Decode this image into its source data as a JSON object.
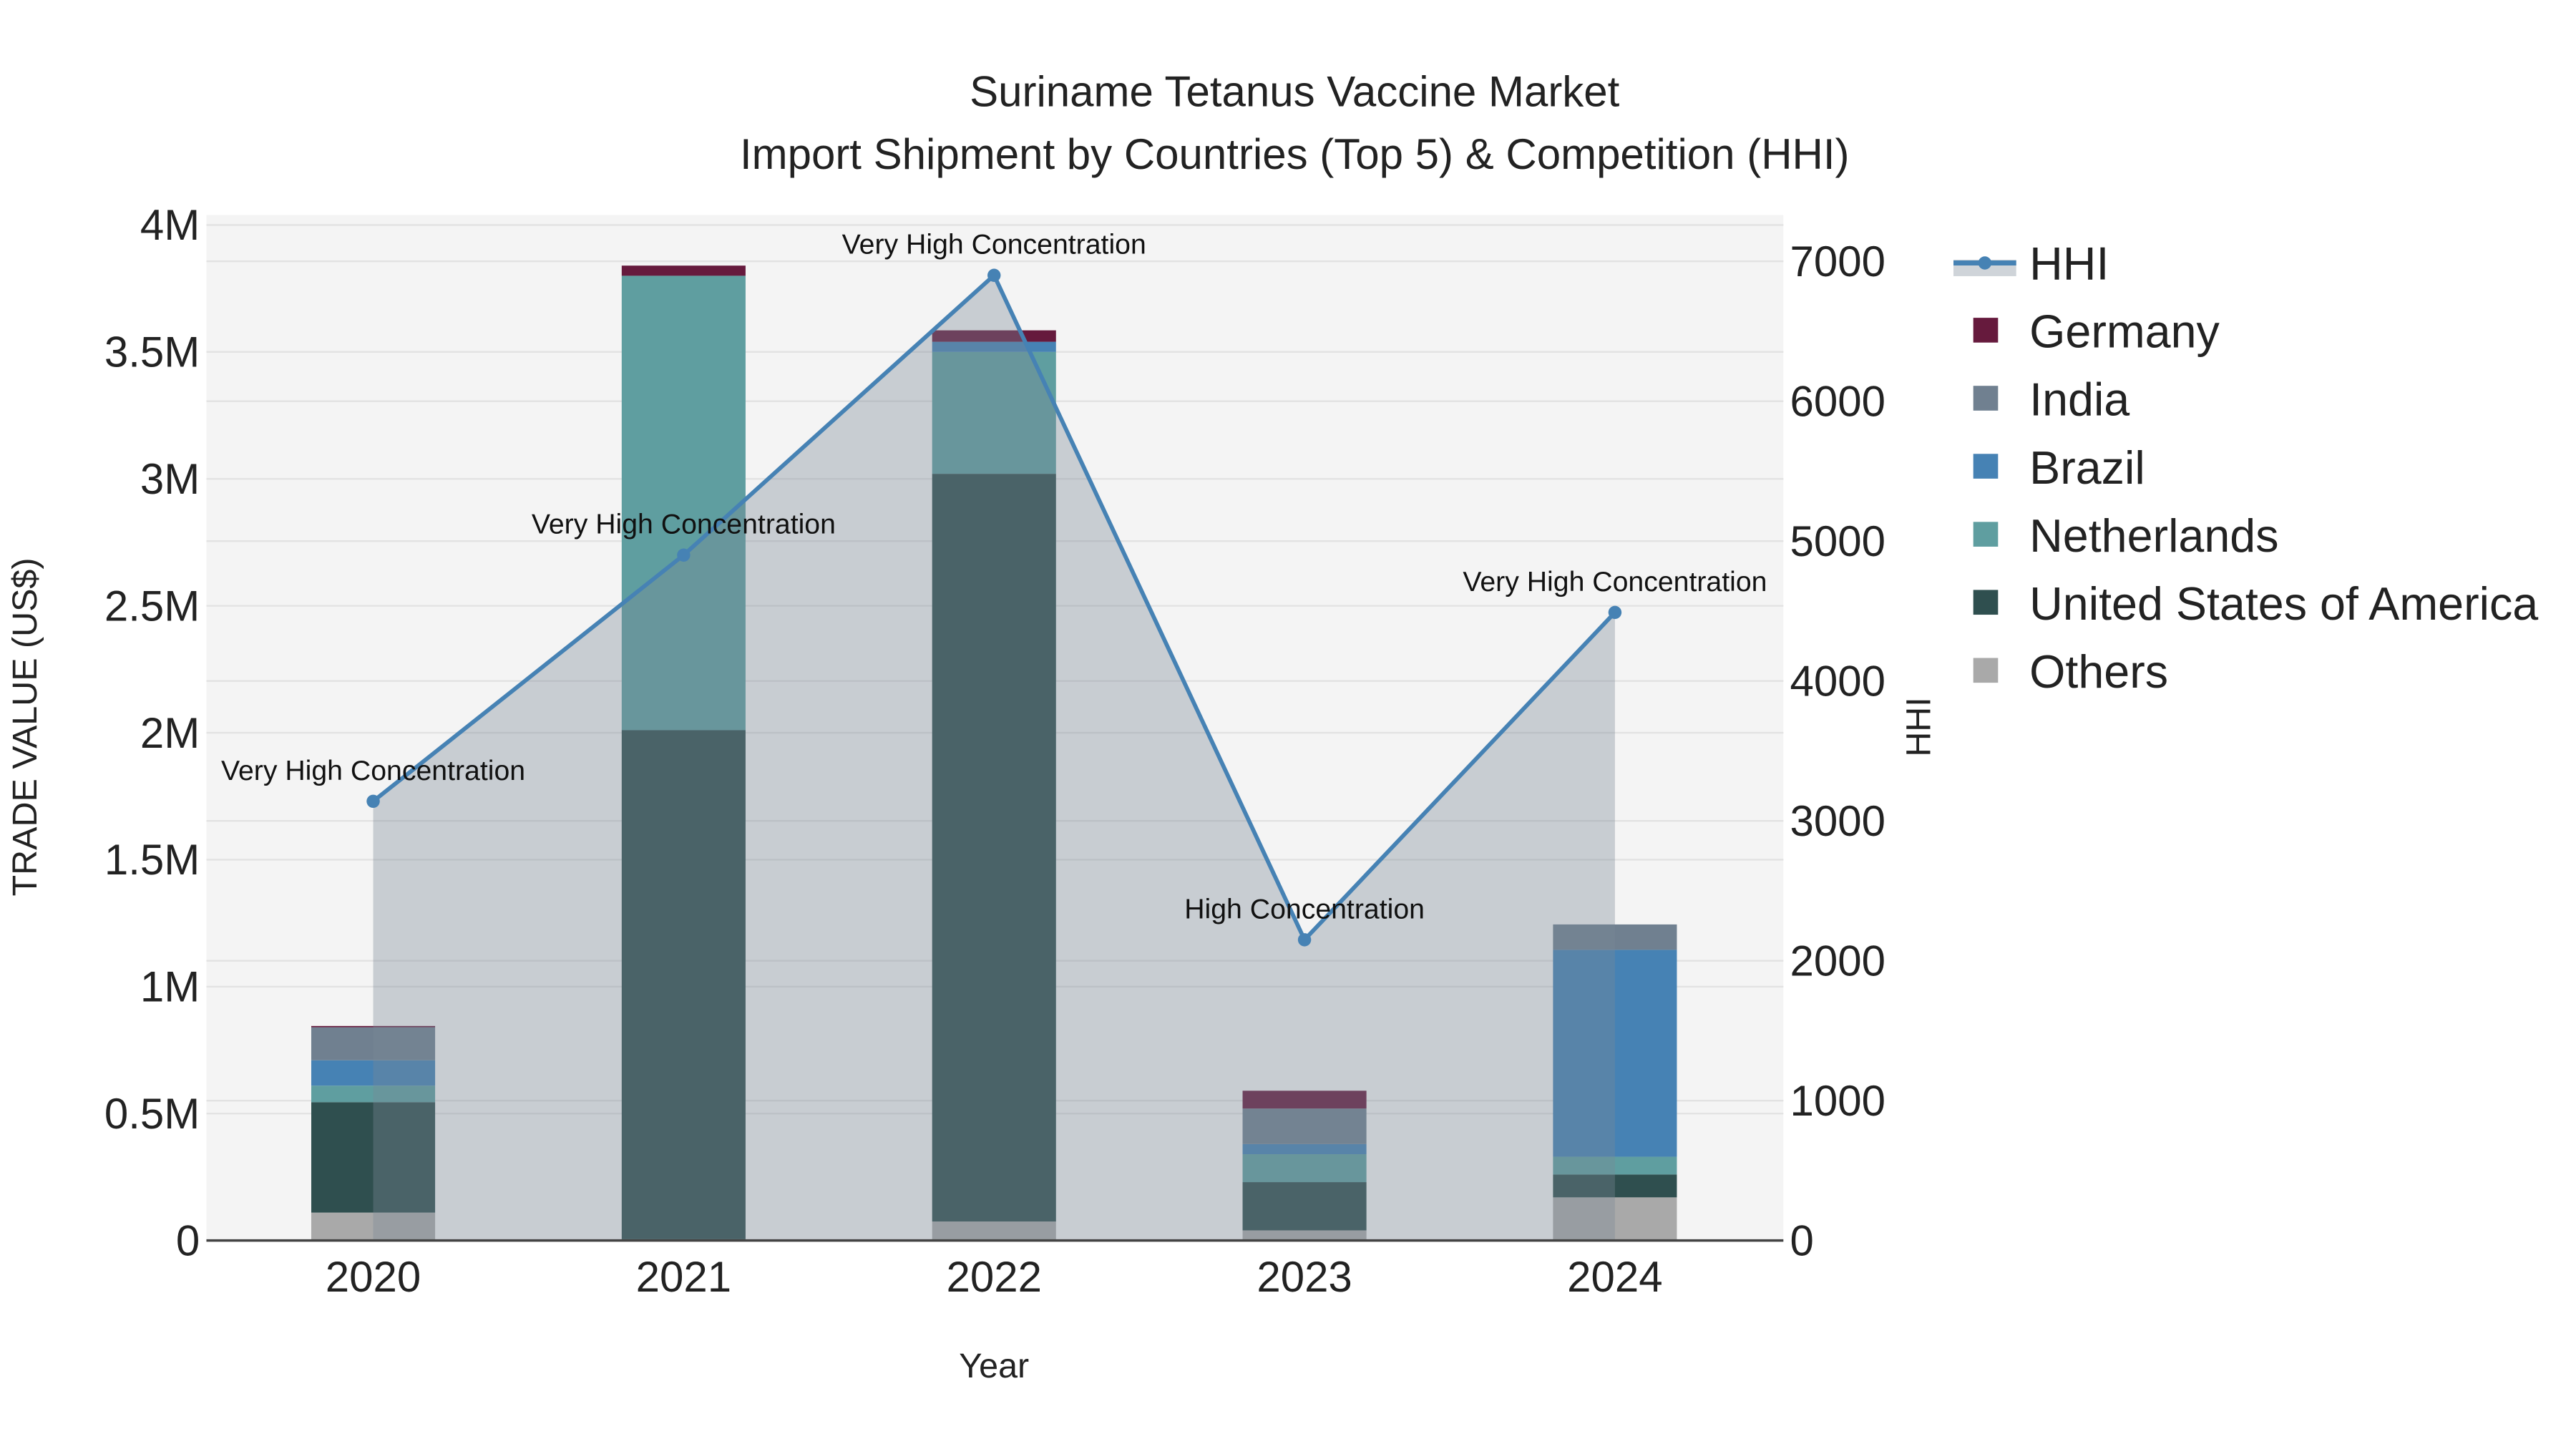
{
  "chart_data": {
    "type": "bar",
    "title": "Suriname Tetanus Vaccine Market",
    "subtitle": "Import Shipment by Countries (Top 5) & Competition (HHI)",
    "xlabel": "Year",
    "ylabel": "TRADE VALUE (US$)",
    "y2label": "HHI",
    "categories": [
      "2020",
      "2021",
      "2022",
      "2023",
      "2024"
    ],
    "ylim": [
      0,
      4000000
    ],
    "y2lim": [
      0,
      7300
    ],
    "yticks": [
      0,
      500000,
      1000000,
      1500000,
      2000000,
      2500000,
      3000000,
      3500000,
      4000000
    ],
    "ytick_labels": [
      "0",
      "0.5M",
      "1M",
      "1.5M",
      "2M",
      "2.5M",
      "3M",
      "3.5M",
      "4M"
    ],
    "y2ticks": [
      0,
      1000,
      2000,
      3000,
      4000,
      5000,
      6000,
      7000
    ],
    "y2tick_labels": [
      "0",
      "1000",
      "2000",
      "3000",
      "4000",
      "5000",
      "6000",
      "7000"
    ],
    "stacked": true,
    "series": [
      {
        "name": "Others",
        "color": "#a9a9a9",
        "values": [
          110000,
          5000,
          75000,
          40000,
          170000
        ]
      },
      {
        "name": "United States of America",
        "color": "#2f4f4f",
        "values": [
          435000,
          2005000,
          2945000,
          190000,
          90000
        ]
      },
      {
        "name": "Netherlands",
        "color": "#5f9ea0",
        "values": [
          65000,
          1790000,
          480000,
          110000,
          70000
        ]
      },
      {
        "name": "Brazil",
        "color": "#4682b4",
        "values": [
          100000,
          0,
          40000,
          40000,
          815000
        ]
      },
      {
        "name": "India",
        "color": "#708090",
        "values": [
          130000,
          0,
          0,
          140000,
          100000
        ]
      },
      {
        "name": "Germany",
        "color": "#661a3d",
        "values": [
          5000,
          40000,
          45000,
          70000,
          0
        ]
      }
    ],
    "hhi": {
      "name": "HHI",
      "color": "#4682b4",
      "values": [
        3140,
        4900,
        6900,
        2150,
        4490
      ],
      "annotations": [
        "Very High Concentration",
        "Very High Concentration",
        "Very High Concentration",
        "High Concentration",
        "Very High Concentration"
      ]
    },
    "legend": {
      "placement": "right",
      "entries": [
        "HHI",
        "Germany",
        "India",
        "Brazil",
        "Netherlands",
        "United States of America",
        "Others"
      ]
    },
    "grid": true
  }
}
